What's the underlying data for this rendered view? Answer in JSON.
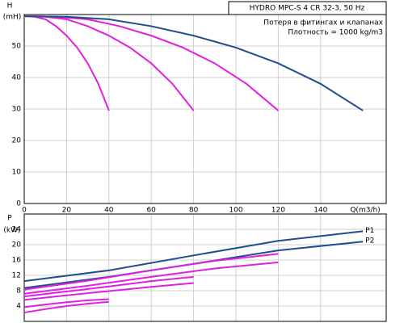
{
  "chart_data": [
    {
      "type": "line",
      "title": "HYDRO MPC-S 4 CR 32-3, 50 Hz",
      "annotations": [
        "Потеря в фитингах и клапанах",
        "Плотность = 1000 kg/m3"
      ],
      "y_label": "H",
      "y_unit": "(mH)",
      "x_label": "Q(m3/h)",
      "xlim": [
        0,
        171
      ],
      "xticks": [
        0,
        20,
        40,
        60,
        80,
        100,
        120,
        140
      ],
      "ylim": [
        0,
        60
      ],
      "yticks": [
        0,
        10,
        20,
        30,
        40,
        50
      ],
      "grid": true,
      "series": [
        {
          "color": "#e020e0",
          "x": [
            0,
            5,
            10,
            15,
            20,
            25,
            30,
            35,
            40
          ],
          "values": [
            59.5,
            59.3,
            58.5,
            56.3,
            53.3,
            49.5,
            44.5,
            38,
            29.5
          ]
        },
        {
          "color": "#e020e0",
          "x": [
            0,
            10,
            20,
            30,
            40,
            50,
            60,
            70,
            80
          ],
          "values": [
            59.5,
            59.3,
            58.5,
            56.3,
            53.3,
            49.5,
            44.5,
            38,
            29.5
          ]
        },
        {
          "color": "#e020e0",
          "x": [
            0,
            15,
            30,
            45,
            60,
            75,
            90,
            105,
            120
          ],
          "values": [
            59.5,
            59.3,
            58.5,
            56.3,
            53.3,
            49.5,
            44.5,
            38,
            29.5
          ]
        },
        {
          "color": "#1f4e8c",
          "x": [
            0,
            20,
            40,
            60,
            80,
            100,
            120,
            140,
            160
          ],
          "values": [
            59.5,
            59.3,
            58.5,
            56.3,
            53.3,
            49.5,
            44.5,
            38,
            29.5
          ]
        }
      ]
    },
    {
      "type": "line",
      "y_label": "P",
      "y_unit": "(kW)",
      "xlim": [
        0,
        171
      ],
      "ylim": [
        0,
        28
      ],
      "yticks": [
        4,
        8,
        12,
        16,
        20,
        24
      ],
      "grid": true,
      "series": [
        {
          "name": "P1",
          "color": "#1f4e8c",
          "x": [
            0,
            40,
            80,
            120,
            160
          ],
          "values": [
            10.5,
            13.3,
            17.2,
            21.0,
            23.5
          ]
        },
        {
          "name": "P2",
          "color": "#1f4e8c",
          "x": [
            0,
            40,
            80,
            120,
            160
          ],
          "values": [
            8.7,
            11.6,
            15.0,
            18.5,
            20.8
          ]
        },
        {
          "color": "#e020e0",
          "x": [
            0,
            30,
            60,
            90,
            120
          ],
          "values": [
            8.3,
            10.6,
            13.3,
            15.8,
            17.6
          ]
        },
        {
          "color": "#e020e0",
          "x": [
            0,
            30,
            60,
            90,
            120
          ],
          "values": [
            7.2,
            9.3,
            11.6,
            13.8,
            15.4
          ]
        },
        {
          "color": "#e020e0",
          "x": [
            0,
            20,
            40,
            60,
            80
          ],
          "values": [
            6.5,
            7.8,
            9.1,
            10.5,
            11.6
          ]
        },
        {
          "color": "#e020e0",
          "x": [
            0,
            20,
            40,
            60,
            80
          ],
          "values": [
            5.6,
            6.8,
            7.9,
            9.0,
            10.0
          ]
        },
        {
          "color": "#e020e0",
          "x": [
            0,
            10,
            20,
            30,
            40
          ],
          "values": [
            3.7,
            4.4,
            5.0,
            5.5,
            5.8
          ]
        },
        {
          "color": "#e020e0",
          "x": [
            0,
            10,
            20,
            30,
            40
          ],
          "values": [
            2.3,
            3.2,
            4.0,
            4.6,
            5.1
          ]
        }
      ]
    }
  ]
}
